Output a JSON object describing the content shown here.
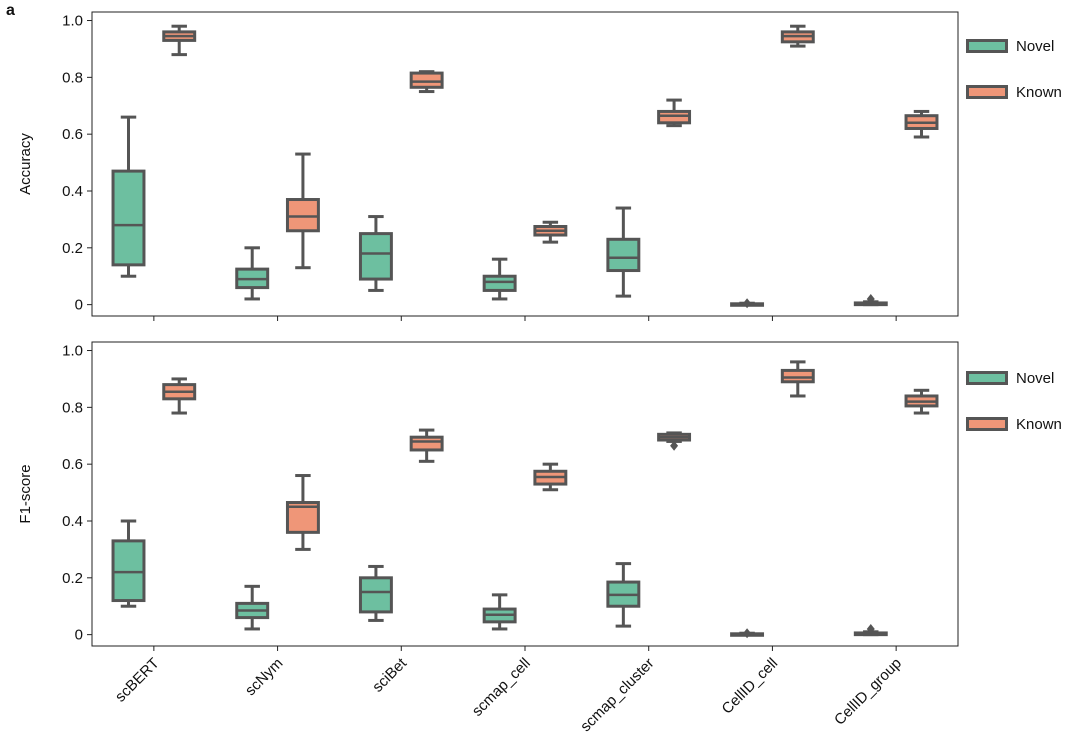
{
  "panel_label": "a",
  "legend": [
    {
      "label": "Novel",
      "color": "#6DBFA0"
    },
    {
      "label": "Known",
      "color": "#EF9678"
    }
  ],
  "chart_data": [
    {
      "type": "box",
      "ylabel": "Accuracy",
      "ylim": [
        -0.04,
        1.03
      ],
      "yticks": [
        0,
        0.2,
        0.4,
        0.6,
        0.8,
        1.0
      ],
      "ytick_labels": [
        "0",
        "0.2",
        "0.4",
        "0.6",
        "0.8",
        "1.0"
      ],
      "categories": [
        "scBERT",
        "scNym",
        "sciBet",
        "scmap_cell",
        "scmap_cluster",
        "CellID_cell",
        "CellID_group"
      ],
      "series": [
        {
          "name": "Novel",
          "boxes": [
            {
              "min": 0.1,
              "q1": 0.14,
              "median": 0.28,
              "q3": 0.47,
              "max": 0.66
            },
            {
              "min": 0.02,
              "q1": 0.06,
              "median": 0.09,
              "q3": 0.125,
              "max": 0.2
            },
            {
              "min": 0.05,
              "q1": 0.09,
              "median": 0.18,
              "q3": 0.25,
              "max": 0.31
            },
            {
              "min": 0.02,
              "q1": 0.05,
              "median": 0.08,
              "q3": 0.1,
              "max": 0.16
            },
            {
              "min": 0.03,
              "q1": 0.12,
              "median": 0.165,
              "q3": 0.23,
              "max": 0.34
            },
            {
              "min": 0.0,
              "q1": 0.0,
              "median": 0.0,
              "q3": 0.003,
              "max": 0.005,
              "fliers": [
                0.005
              ]
            },
            {
              "min": 0.0,
              "q1": 0.0,
              "median": 0.003,
              "q3": 0.006,
              "max": 0.01,
              "fliers": [
                0.02
              ]
            }
          ]
        },
        {
          "name": "Known",
          "boxes": [
            {
              "min": 0.88,
              "q1": 0.93,
              "median": 0.945,
              "q3": 0.96,
              "max": 0.98
            },
            {
              "min": 0.13,
              "q1": 0.26,
              "median": 0.31,
              "q3": 0.37,
              "max": 0.53
            },
            {
              "min": 0.75,
              "q1": 0.765,
              "median": 0.785,
              "q3": 0.815,
              "max": 0.82
            },
            {
              "min": 0.22,
              "q1": 0.245,
              "median": 0.26,
              "q3": 0.275,
              "max": 0.29
            },
            {
              "min": 0.63,
              "q1": 0.64,
              "median": 0.665,
              "q3": 0.68,
              "max": 0.72
            },
            {
              "min": 0.91,
              "q1": 0.925,
              "median": 0.945,
              "q3": 0.96,
              "max": 0.98
            },
            {
              "min": 0.59,
              "q1": 0.62,
              "median": 0.64,
              "q3": 0.665,
              "max": 0.68
            }
          ]
        }
      ]
    },
    {
      "type": "box",
      "ylabel": "F1-score",
      "ylim": [
        -0.04,
        1.03
      ],
      "yticks": [
        0,
        0.2,
        0.4,
        0.6,
        0.8,
        1.0
      ],
      "ytick_labels": [
        "0",
        "0.2",
        "0.4",
        "0.6",
        "0.8",
        "1.0"
      ],
      "categories": [
        "scBERT",
        "scNym",
        "sciBet",
        "scmap_cell",
        "scmap_cluster",
        "CellID_cell",
        "CellID_group"
      ],
      "series": [
        {
          "name": "Novel",
          "boxes": [
            {
              "min": 0.1,
              "q1": 0.12,
              "median": 0.22,
              "q3": 0.33,
              "max": 0.4
            },
            {
              "min": 0.02,
              "q1": 0.06,
              "median": 0.085,
              "q3": 0.11,
              "max": 0.17
            },
            {
              "min": 0.05,
              "q1": 0.08,
              "median": 0.15,
              "q3": 0.2,
              "max": 0.24
            },
            {
              "min": 0.02,
              "q1": 0.045,
              "median": 0.07,
              "q3": 0.09,
              "max": 0.14
            },
            {
              "min": 0.03,
              "q1": 0.1,
              "median": 0.14,
              "q3": 0.185,
              "max": 0.25
            },
            {
              "min": 0.0,
              "q1": 0.0,
              "median": 0.0,
              "q3": 0.003,
              "max": 0.005,
              "fliers": [
                0.005
              ]
            },
            {
              "min": 0.0,
              "q1": 0.0,
              "median": 0.003,
              "q3": 0.006,
              "max": 0.01,
              "fliers": [
                0.02
              ]
            }
          ]
        },
        {
          "name": "Known",
          "boxes": [
            {
              "min": 0.78,
              "q1": 0.83,
              "median": 0.855,
              "q3": 0.88,
              "max": 0.9
            },
            {
              "min": 0.3,
              "q1": 0.36,
              "median": 0.45,
              "q3": 0.465,
              "max": 0.56
            },
            {
              "min": 0.61,
              "q1": 0.65,
              "median": 0.68,
              "q3": 0.695,
              "max": 0.72
            },
            {
              "min": 0.51,
              "q1": 0.53,
              "median": 0.555,
              "q3": 0.575,
              "max": 0.6
            },
            {
              "min": 0.68,
              "q1": 0.685,
              "median": 0.695,
              "q3": 0.705,
              "max": 0.71,
              "fliers": [
                0.665
              ]
            },
            {
              "min": 0.84,
              "q1": 0.89,
              "median": 0.905,
              "q3": 0.93,
              "max": 0.96
            },
            {
              "min": 0.78,
              "q1": 0.805,
              "median": 0.82,
              "q3": 0.84,
              "max": 0.86
            }
          ]
        }
      ]
    }
  ]
}
